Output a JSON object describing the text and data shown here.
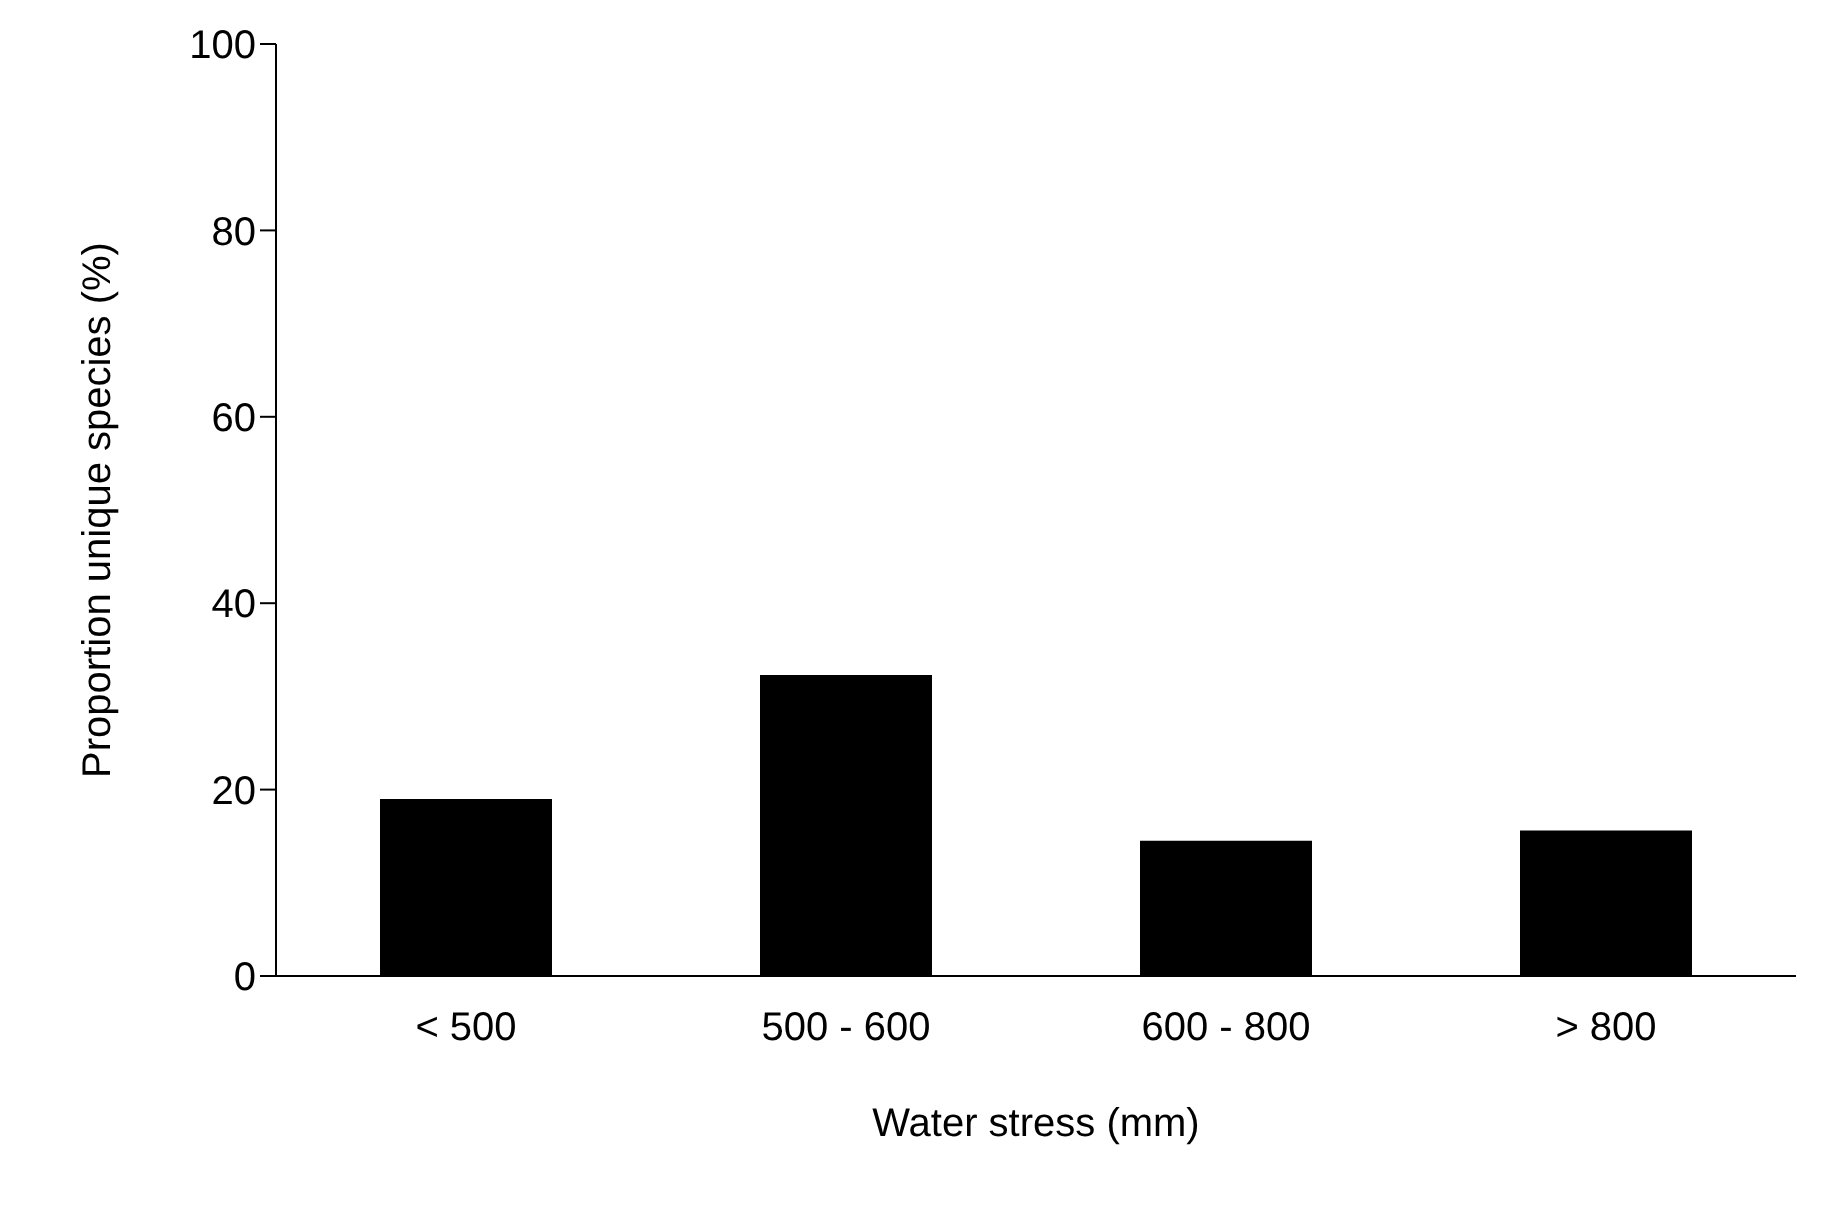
{
  "chart_data": {
    "type": "bar",
    "xlabel": "Water stress (mm)",
    "ylabel": "Proportion unique species  (%)",
    "categories": [
      "< 500",
      "500 - 600",
      "600 - 800",
      "> 800"
    ],
    "values": [
      19,
      32.3,
      14.5,
      15.6
    ],
    "color": "#000000",
    "ylim": [
      0,
      100
    ],
    "yticks": [
      0,
      20,
      40,
      60,
      80,
      100
    ],
    "grid": false,
    "legend": false
  }
}
